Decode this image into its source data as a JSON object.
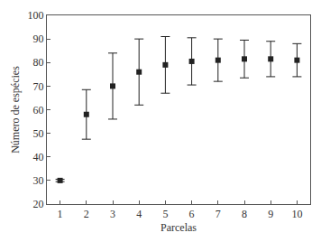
{
  "chart_data": {
    "type": "scatter",
    "x_label": "Parcelas",
    "y_label": "Número de espécies",
    "x": [
      1,
      2,
      3,
      4,
      5,
      6,
      7,
      8,
      9,
      10
    ],
    "values": [
      30,
      58,
      70,
      76,
      79,
      80.5,
      81,
      81.5,
      81.5,
      81
    ],
    "error": [
      0.5,
      10.5,
      14,
      14,
      12,
      10,
      9,
      8,
      7.5,
      7
    ],
    "color": "#222222",
    "marker": "square",
    "grid": false,
    "xlim": [
      0.5,
      10.5
    ],
    "xticks": [
      1,
      2,
      3,
      4,
      5,
      6,
      7,
      8,
      9,
      10
    ],
    "ylim": [
      20,
      100
    ],
    "yticks": [
      20,
      30,
      40,
      50,
      60,
      70,
      80,
      90,
      100
    ]
  }
}
